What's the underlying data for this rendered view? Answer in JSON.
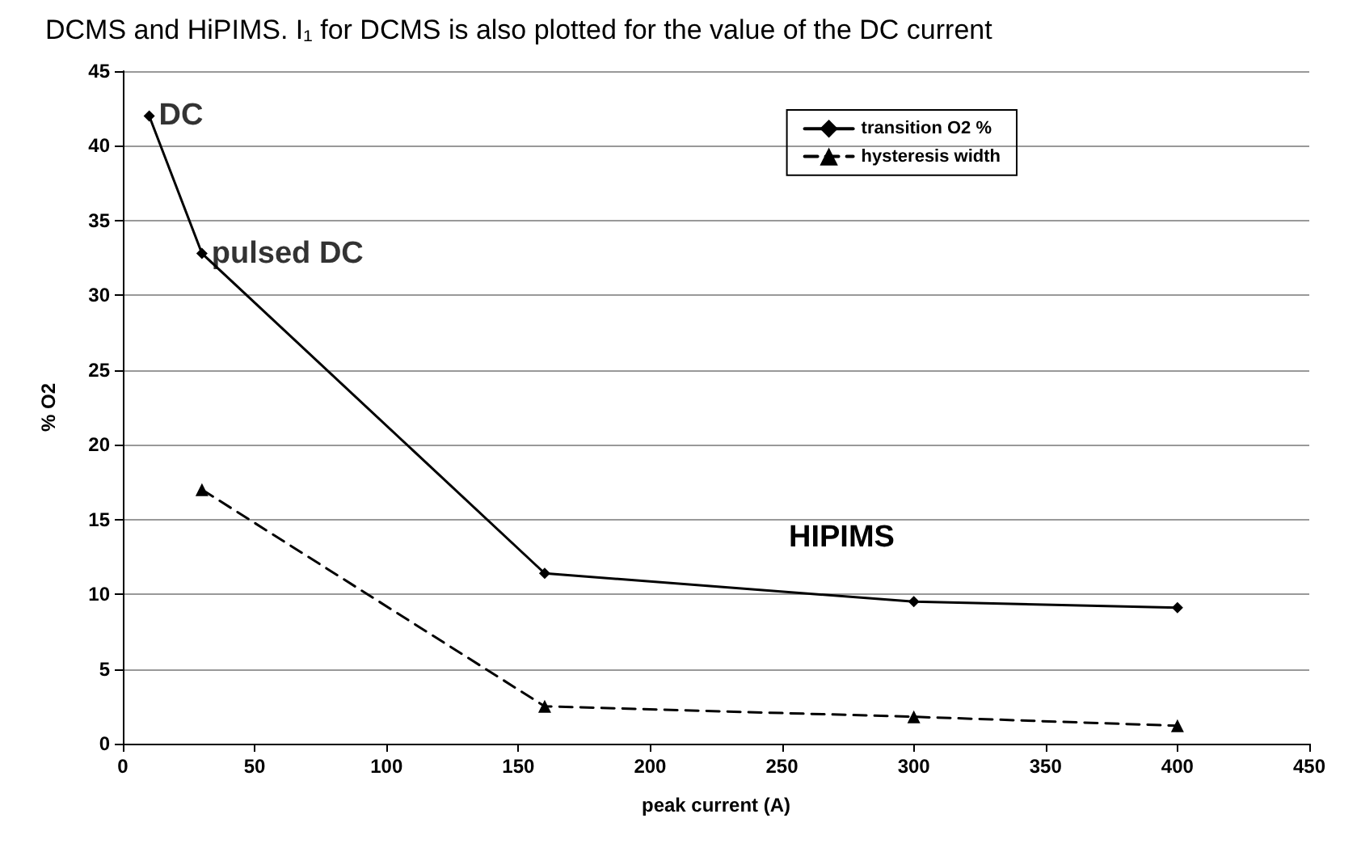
{
  "chart_data": {
    "type": "line",
    "xlabel": "peak current (A)",
    "ylabel": "% O2",
    "series": [
      {
        "name": "transition O2 %",
        "color": "#000000",
        "marker": "diamond",
        "line_style": "solid",
        "x": [
          10,
          30,
          160,
          300,
          400
        ],
        "values": [
          42,
          32.8,
          11.4,
          9.5,
          9.1
        ]
      },
      {
        "name": "hysteresis width",
        "color": "#000000",
        "marker": "triangle",
        "line_style": "dashed",
        "x": [
          30,
          160,
          300,
          400
        ],
        "values": [
          17,
          2.5,
          1.8,
          1.2
        ]
      }
    ],
    "xlim": [
      0,
      450
    ],
    "xticks": [
      0,
      50,
      100,
      150,
      200,
      250,
      300,
      350,
      400,
      450
    ],
    "ylim": [
      0,
      45
    ],
    "yticks": [
      0,
      5,
      10,
      15,
      20,
      25,
      30,
      35,
      40,
      45
    ],
    "grid": "y",
    "legend": "top right",
    "annotations": [
      "DCMS and HiPIMS. I₁ for DCMS is also plotted for the value of the DC current",
      {
        "text": "DC",
        "x": 10,
        "y": 42
      },
      {
        "text": "pulsed DC",
        "x": 30,
        "y": 32.8
      },
      "HIPIMS"
    ]
  }
}
